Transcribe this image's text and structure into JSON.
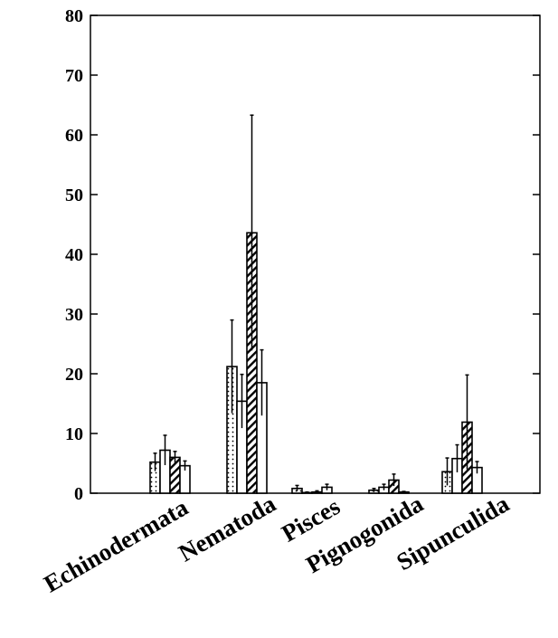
{
  "chart_data": {
    "type": "bar",
    "title": "",
    "xlabel": "",
    "ylabel": "",
    "ylim": [
      0,
      80
    ],
    "yticks": [
      0,
      10,
      20,
      30,
      40,
      50,
      60,
      70,
      80
    ],
    "grid": false,
    "legend": "none",
    "categories": [
      "Echinodermata",
      "Nematoda",
      "Pisces",
      "Pignogonida",
      "Sipunculida"
    ],
    "series": [
      {
        "pattern": "dotted",
        "values": [
          5.2,
          21.2,
          0.8,
          0.5,
          3.6
        ],
        "errors": [
          1.5,
          7.8,
          0.5,
          0.3,
          2.3
        ]
      },
      {
        "pattern": "blank",
        "values": [
          7.2,
          15.4,
          0.1,
          1.0,
          5.8
        ],
        "errors": [
          2.5,
          4.5,
          0.1,
          0.5,
          2.3
        ]
      },
      {
        "pattern": "hatched",
        "values": [
          6.0,
          43.6,
          0.2,
          2.2,
          11.9
        ],
        "errors": [
          1.0,
          19.7,
          0.2,
          1.0,
          7.9
        ]
      },
      {
        "pattern": "blank",
        "values": [
          4.6,
          18.5,
          1.0,
          0.2,
          4.3
        ],
        "errors": [
          0.8,
          5.5,
          0.5,
          0.1,
          1.0
        ]
      }
    ]
  }
}
